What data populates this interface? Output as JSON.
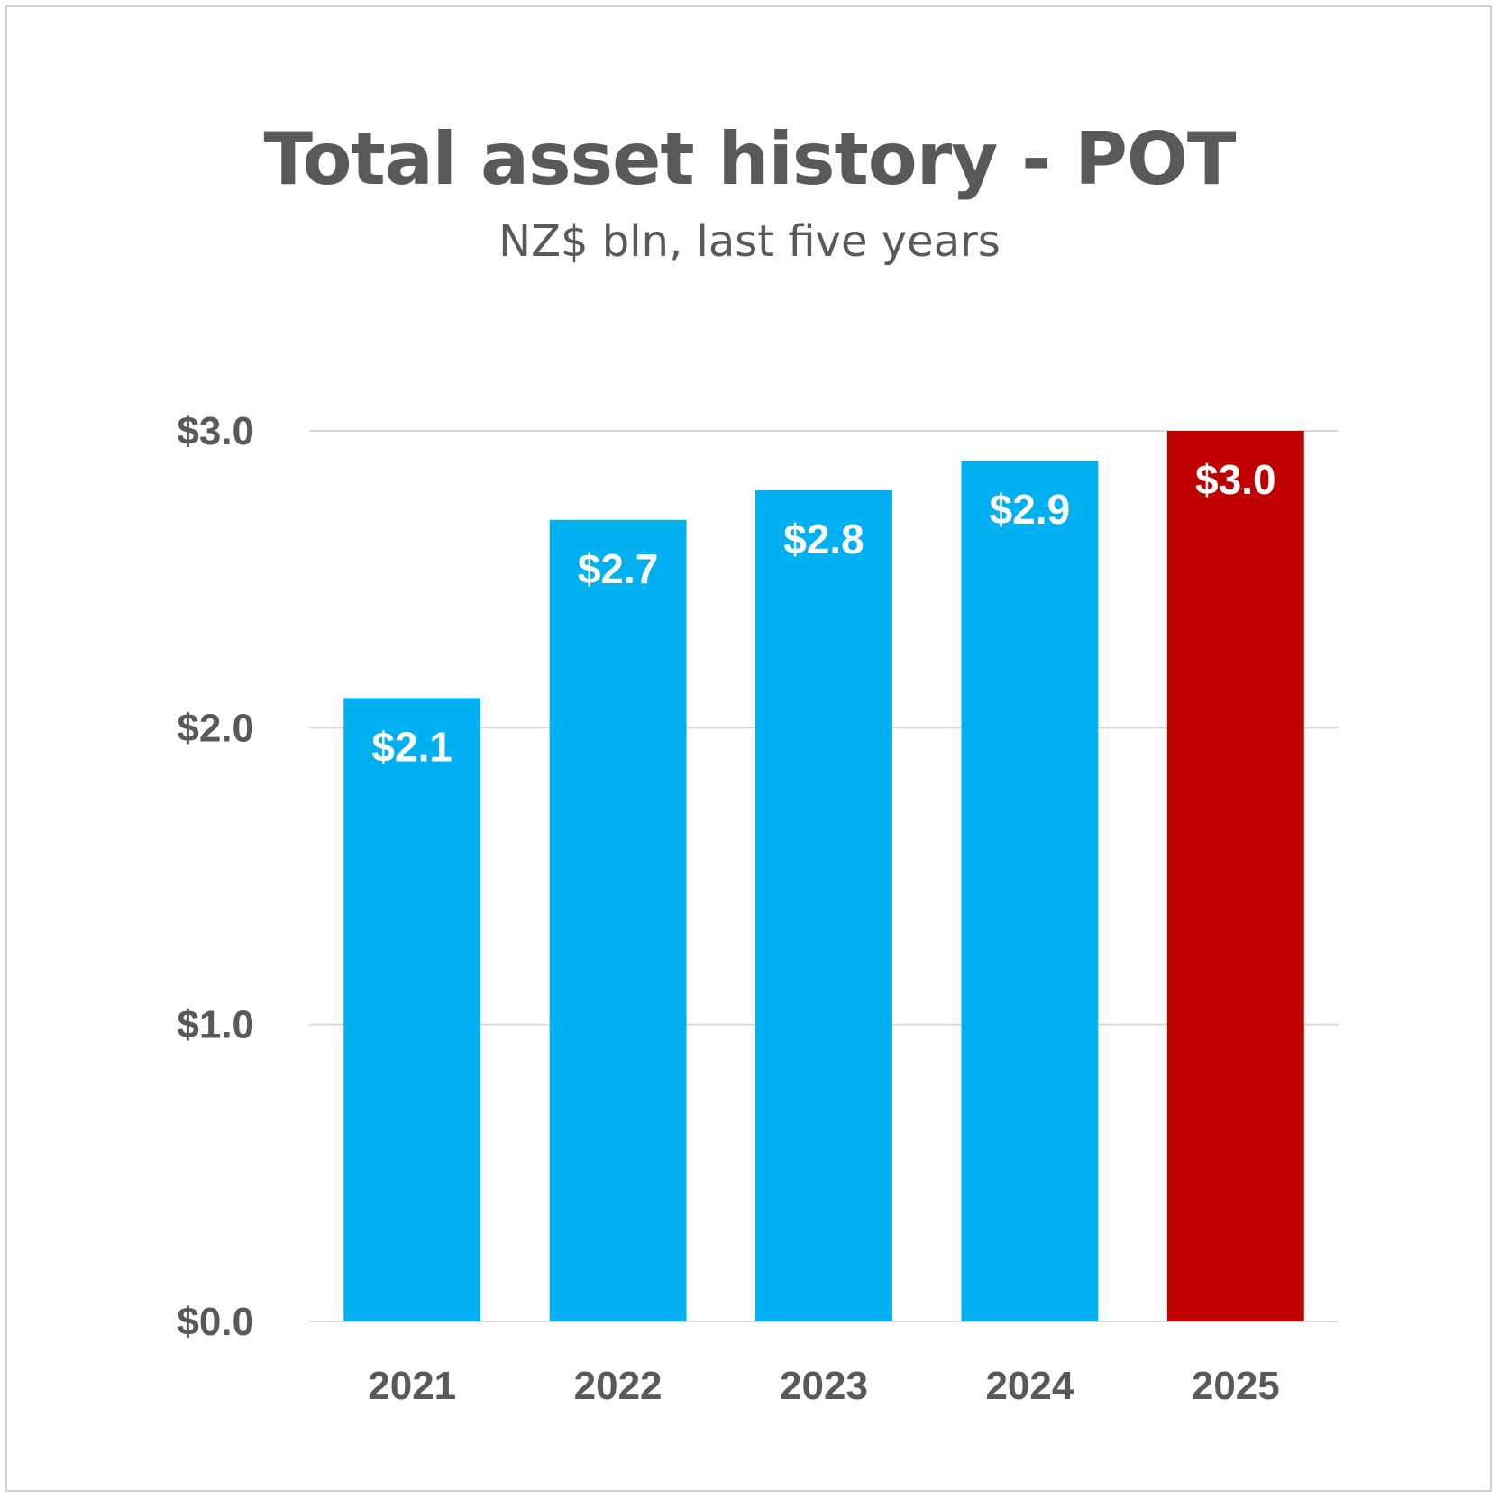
{
  "chart_data": {
    "type": "bar",
    "title": "Total asset history - POT",
    "subtitle": "NZ$ bln, last five years",
    "categories": [
      "2021",
      "2022",
      "2023",
      "2024",
      "2025"
    ],
    "values": [
      2.1,
      2.7,
      2.8,
      2.9,
      3.0
    ],
    "data_labels": [
      "$2.1",
      "$2.7",
      "$2.8",
      "$2.9",
      "$3.0"
    ],
    "bar_colors": [
      "#00b0f0",
      "#00b0f0",
      "#00b0f0",
      "#00b0f0",
      "#c00000"
    ],
    "ylim": [
      0,
      3
    ],
    "yticks": [
      0,
      1,
      2,
      3
    ],
    "ytick_labels": [
      "$0.0",
      "$1.0",
      "$2.0",
      "$3.0"
    ],
    "gridlines": true,
    "grid_color": "#d9d9d9",
    "text_color": "#595959",
    "legend": "none"
  }
}
